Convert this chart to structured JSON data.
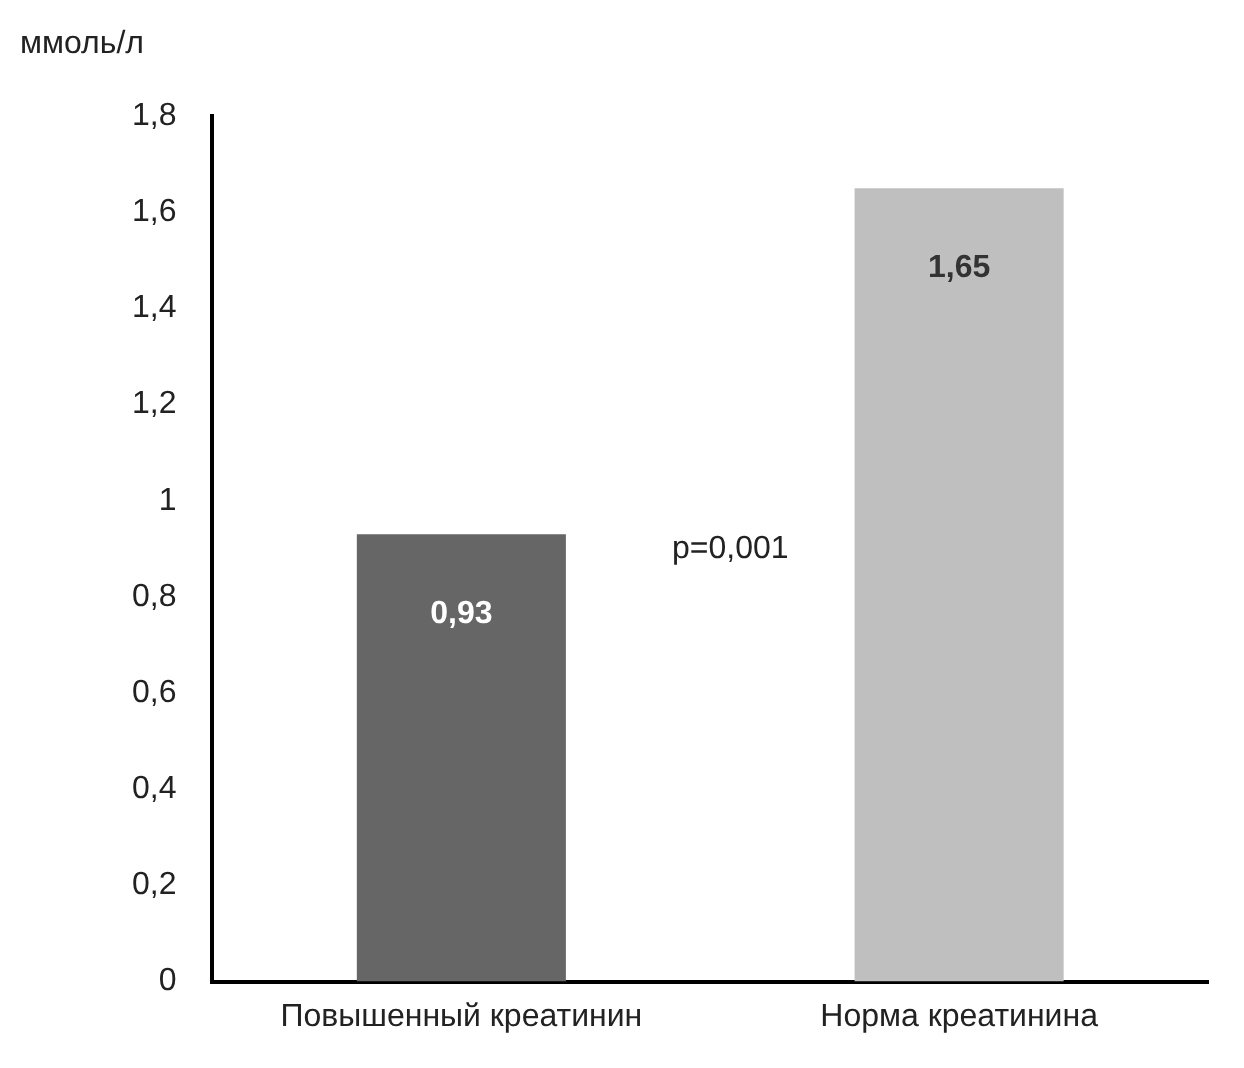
{
  "chart_data": {
    "type": "bar",
    "ylabel": "ммоль/л",
    "categories": [
      "Повышенный креатинин",
      "Норма креатинина"
    ],
    "values": [
      0.93,
      1.65
    ],
    "colors": [
      "#666666",
      "#bfbfbf"
    ],
    "value_labels": [
      "0,93",
      "1,65"
    ],
    "ylim": [
      0,
      1.8
    ],
    "yticks": [
      0,
      {
        "value": 0.2,
        "label": "0,2"
      },
      {
        "value": 0.4,
        "label": "0,4"
      },
      {
        "value": 0.6,
        "label": "0,6"
      },
      {
        "value": 0.8,
        "label": "0,8"
      },
      1,
      {
        "value": 1.2,
        "label": "1,2"
      },
      {
        "value": 1.4,
        "label": "1,4"
      },
      {
        "value": 1.6,
        "label": "1,6"
      },
      {
        "value": 1.8,
        "label": "1,8"
      }
    ],
    "annotations": [
      "p=0,001"
    ],
    "grid": false,
    "legend": false
  }
}
